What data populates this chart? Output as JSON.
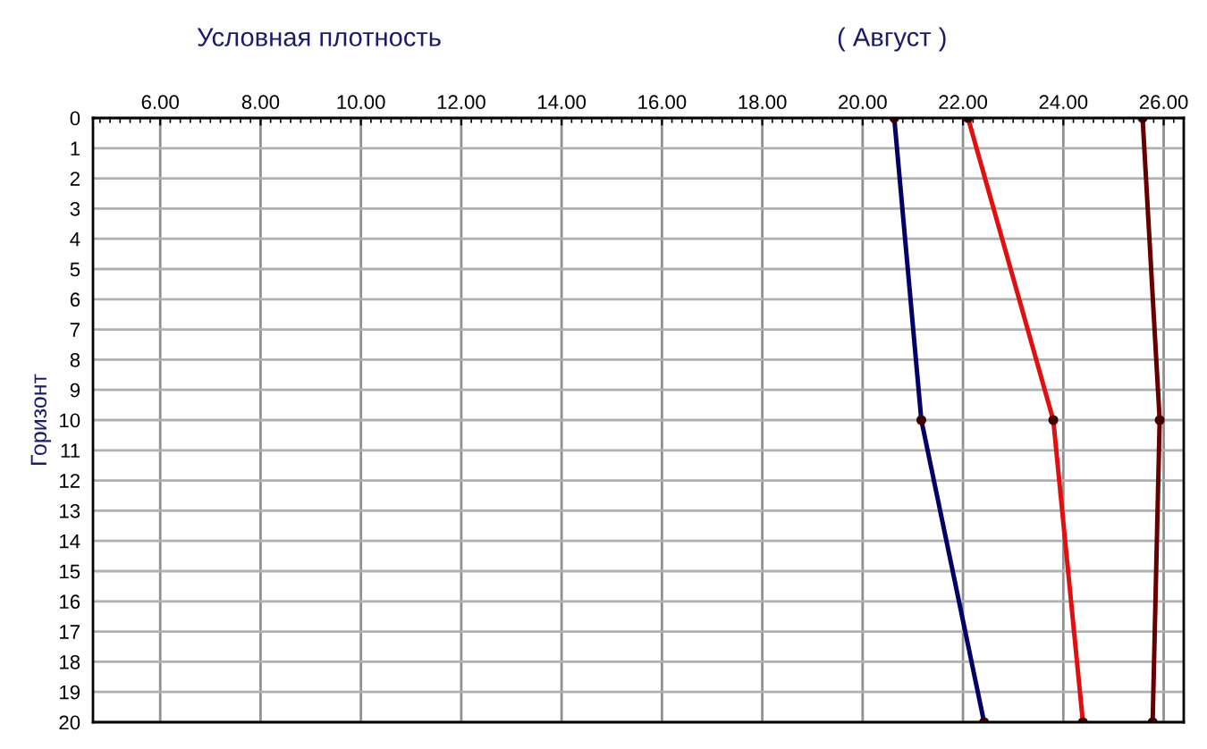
{
  "chart_data": {
    "type": "line",
    "title": "Условная плотность",
    "subtitle": "( Август )",
    "ylabel": "Горизонт",
    "orientation": "horizontal",
    "x": [
      0,
      10,
      20
    ],
    "series": [
      {
        "color": "#000066",
        "values": [
          20.63,
          21.17,
          22.42
        ]
      },
      {
        "color": "#e01010",
        "values": [
          22.1,
          23.8,
          24.39
        ]
      },
      {
        "color": "#660000",
        "values": [
          25.58,
          25.92,
          25.78
        ]
      }
    ],
    "xlim": [
      4.66,
      26.4
    ],
    "xticks": [
      {
        "value": 6,
        "label": "6.00"
      },
      {
        "value": 8,
        "label": "8.00"
      },
      {
        "value": 10,
        "label": "10.00"
      },
      {
        "value": 12,
        "label": "12.00"
      },
      {
        "value": 14,
        "label": "14.00"
      },
      {
        "value": 16,
        "label": "16.00"
      },
      {
        "value": 18,
        "label": "18.00"
      },
      {
        "value": 20,
        "label": "20.00"
      },
      {
        "value": 22,
        "label": "22.00"
      },
      {
        "value": 24,
        "label": "24.00"
      },
      {
        "value": 26,
        "label": "26.00"
      }
    ],
    "ylim": [
      20,
      0
    ],
    "yticks": [
      0,
      1,
      2,
      3,
      4,
      5,
      6,
      7,
      8,
      9,
      10,
      11,
      12,
      13,
      14,
      15,
      16,
      17,
      18,
      19,
      20
    ],
    "grid": true,
    "marker": "circle",
    "line_style": "solid",
    "legend": false
  }
}
